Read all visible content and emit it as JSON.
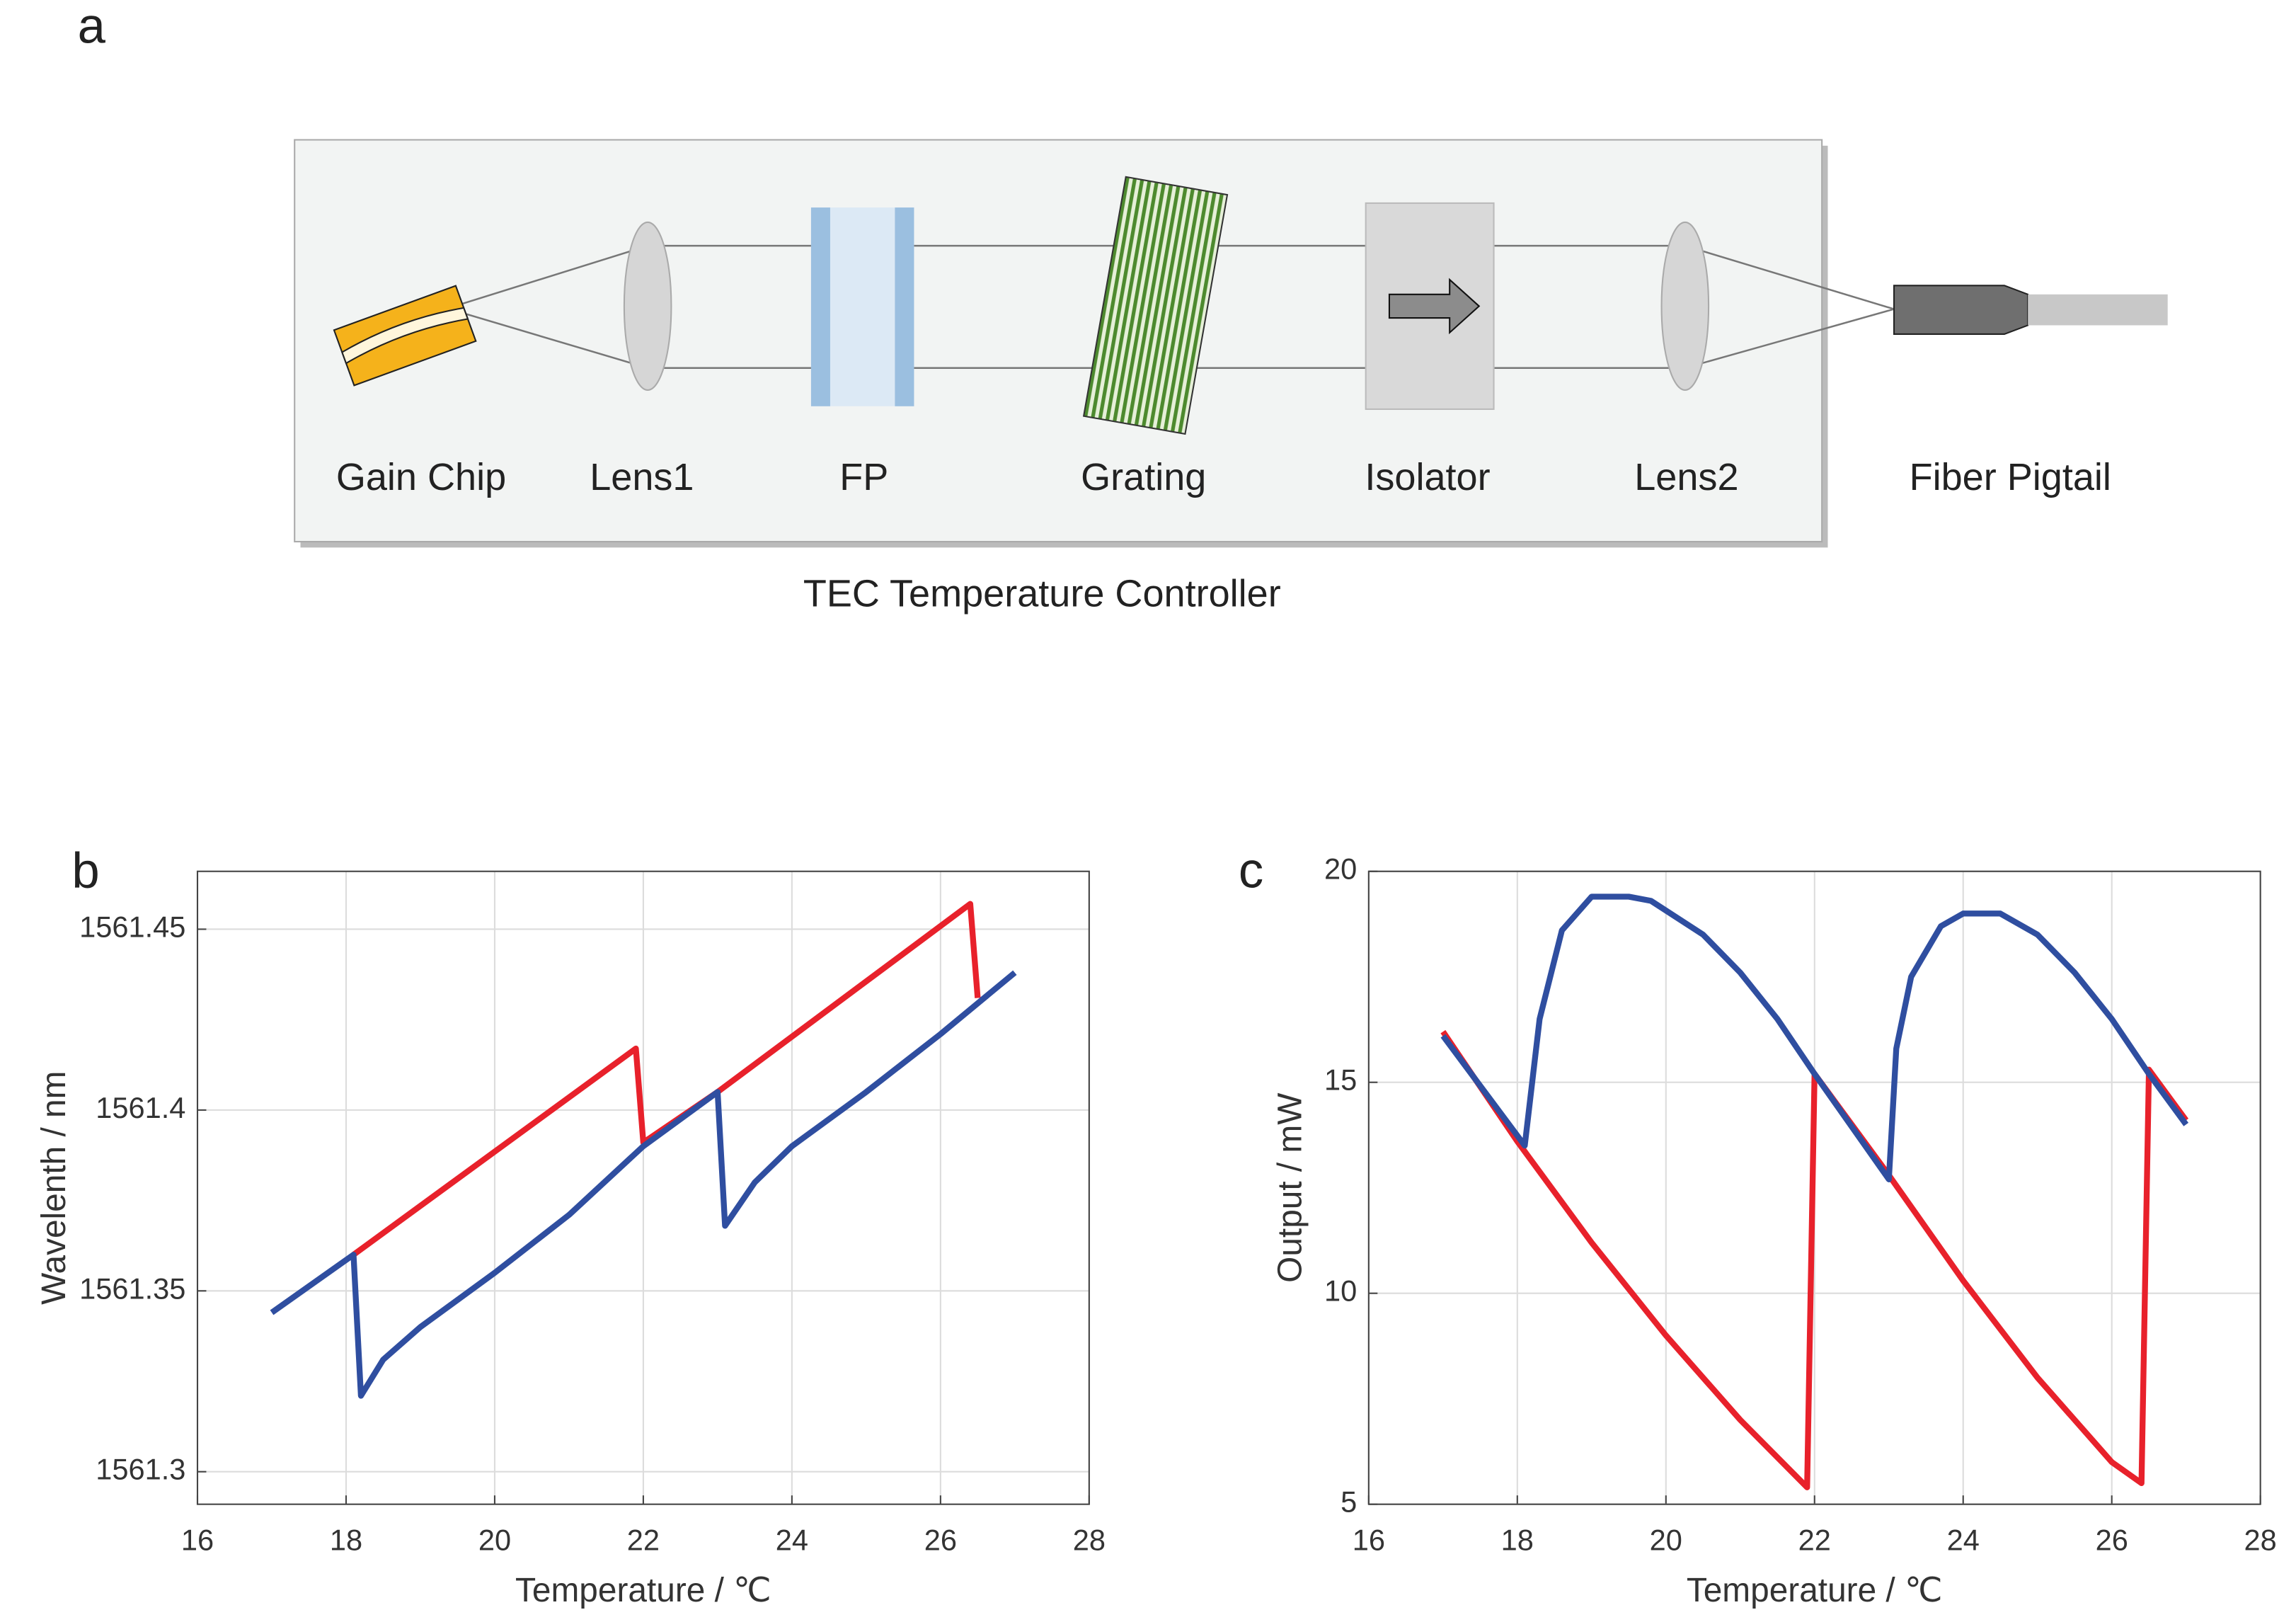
{
  "diagram": {
    "panel": "a",
    "box_label": "TEC Temperature Controller",
    "components": [
      "Gain Chip",
      "Lens1",
      "FP",
      "Grating",
      "Isolator",
      "Lens2",
      "Fiber Pigtail"
    ]
  },
  "chart_data": [
    {
      "type": "line",
      "label": "b",
      "xlabel": "Temperature / ℃",
      "ylabel": "Wavelenth / nm",
      "xlim": [
        16,
        28
      ],
      "xticks": [
        16,
        18,
        20,
        22,
        24,
        26,
        28
      ],
      "ylim": [
        1561.291,
        1561.466
      ],
      "yticks": [
        1561.3,
        1561.35,
        1561.4,
        1561.45
      ],
      "grid": true,
      "series": [
        {
          "color": "#e8212b",
          "x": [
            18.1,
            21.9,
            22.0,
            23.0,
            26.4,
            26.5
          ],
          "values": [
            1561.36,
            1561.417,
            1561.391,
            1561.405,
            1561.457,
            1561.431
          ]
        },
        {
          "color": "#2f4ea0",
          "x": [
            17,
            18.1,
            18.2,
            18.5,
            19,
            20,
            21,
            22,
            23.0,
            23.1,
            23.5,
            24,
            25,
            26,
            27
          ],
          "values": [
            1561.344,
            1561.36,
            1561.321,
            1561.331,
            1561.34,
            1561.355,
            1561.371,
            1561.39,
            1561.405,
            1561.368,
            1561.38,
            1561.39,
            1561.405,
            1561.421,
            1561.438
          ]
        }
      ]
    },
    {
      "type": "line",
      "label": "c",
      "xlabel": "Temperature / ℃",
      "ylabel": "Output / mW",
      "xlim": [
        16,
        28
      ],
      "xticks": [
        16,
        18,
        20,
        22,
        24,
        26,
        28
      ],
      "ylim": [
        5,
        20
      ],
      "yticks": [
        5,
        10,
        15,
        20
      ],
      "grid": true,
      "series": [
        {
          "color": "#e8212b",
          "x": [
            17,
            18,
            19,
            20,
            21,
            21.9,
            22.0,
            23.0,
            24,
            25,
            26,
            26.4,
            26.5,
            27
          ],
          "values": [
            16.2,
            13.6,
            11.2,
            9.0,
            7.0,
            5.4,
            15.2,
            12.8,
            10.3,
            8.0,
            6.0,
            5.5,
            15.3,
            14.1
          ]
        },
        {
          "color": "#2f4ea0",
          "x": [
            17,
            18.1,
            18.3,
            18.6,
            19,
            19.5,
            19.8,
            20.5,
            21,
            21.5,
            22,
            23.0,
            23.1,
            23.3,
            23.7,
            24,
            24.5,
            25,
            25.5,
            26,
            26.5,
            27
          ],
          "values": [
            16.1,
            13.5,
            16.5,
            18.6,
            19.4,
            19.4,
            19.3,
            18.5,
            17.6,
            16.5,
            15.2,
            12.7,
            15.8,
            17.5,
            18.7,
            19.0,
            19.0,
            18.5,
            17.6,
            16.5,
            15.2,
            14.0
          ]
        }
      ]
    }
  ]
}
